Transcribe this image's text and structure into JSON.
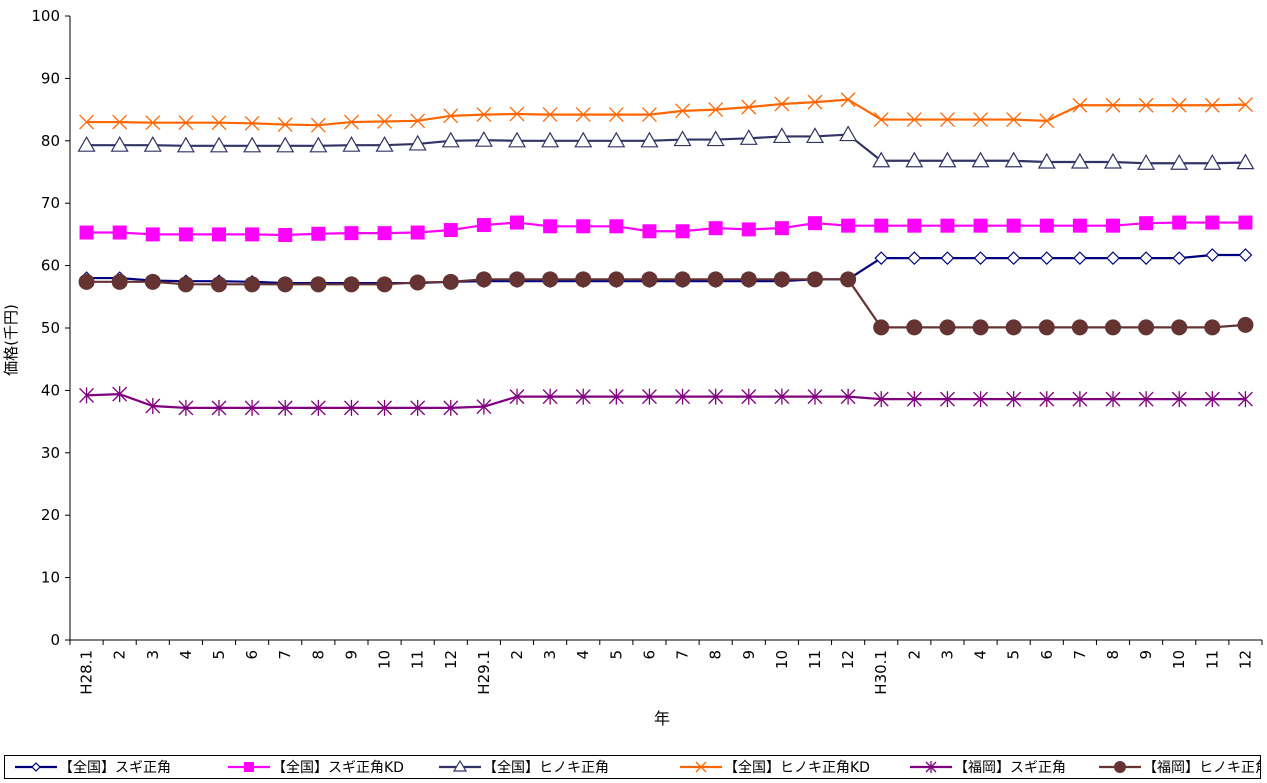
{
  "chart_data": {
    "type": "line",
    "title": "",
    "xlabel": "年",
    "ylabel": "価格(千円)",
    "ylim": [
      0,
      100
    ],
    "ytick_step": 10,
    "grid": false,
    "legend_position": "bottom",
    "categories": [
      "H28.1",
      "2",
      "3",
      "4",
      "5",
      "6",
      "7",
      "8",
      "9",
      "10",
      "11",
      "12",
      "H29.1",
      "2",
      "3",
      "4",
      "5",
      "6",
      "7",
      "8",
      "9",
      "10",
      "11",
      "12",
      "H30.1",
      "2",
      "3",
      "4",
      "5",
      "6",
      "7",
      "8",
      "9",
      "10",
      "11",
      "12"
    ],
    "series": [
      {
        "name": "【全国】スギ正角",
        "color": "#000080",
        "marker": "diamond-open",
        "values": [
          58,
          58,
          57.6,
          57.5,
          57.5,
          57.4,
          57.2,
          57.2,
          57.2,
          57.2,
          57.2,
          57.4,
          57.5,
          57.5,
          57.5,
          57.5,
          57.5,
          57.5,
          57.5,
          57.5,
          57.5,
          57.5,
          57.8,
          57.8,
          61.2,
          61.2,
          61.2,
          61.2,
          61.2,
          61.2,
          61.2,
          61.2,
          61.2,
          61.2,
          61.7,
          61.7
        ]
      },
      {
        "name": "【全国】スギ正角KD",
        "color": "#ff00ff",
        "marker": "square",
        "values": [
          65.3,
          65.3,
          65,
          65,
          65,
          65,
          64.9,
          65.1,
          65.2,
          65.2,
          65.3,
          65.7,
          66.5,
          66.9,
          66.3,
          66.3,
          66.3,
          65.5,
          65.5,
          66,
          65.8,
          66,
          66.8,
          66.4,
          66.4,
          66.4,
          66.4,
          66.4,
          66.4,
          66.4,
          66.4,
          66.4,
          66.8,
          66.9,
          66.9,
          66.9
        ]
      },
      {
        "name": "【全国】ヒノキ正角",
        "color": "#333366",
        "marker": "triangle-open",
        "values": [
          79.3,
          79.3,
          79.3,
          79.2,
          79.2,
          79.2,
          79.2,
          79.2,
          79.3,
          79.3,
          79.5,
          80,
          80.1,
          80,
          80,
          80,
          80,
          80,
          80.2,
          80.2,
          80.4,
          80.7,
          80.7,
          81,
          76.8,
          76.8,
          76.8,
          76.8,
          76.8,
          76.6,
          76.6,
          76.6,
          76.4,
          76.4,
          76.4,
          76.5
        ]
      },
      {
        "name": "【全国】ヒノキ正角KD",
        "color": "#ff6600",
        "marker": "x",
        "values": [
          83,
          83,
          82.9,
          82.9,
          82.9,
          82.8,
          82.6,
          82.5,
          83,
          83.1,
          83.2,
          84,
          84.2,
          84.3,
          84.2,
          84.2,
          84.2,
          84.2,
          84.8,
          85,
          85.4,
          85.9,
          86.2,
          86.6,
          83.4,
          83.4,
          83.4,
          83.4,
          83.4,
          83.2,
          85.7,
          85.7,
          85.7,
          85.7,
          85.7,
          85.8
        ]
      },
      {
        "name": "【福岡】スギ正角",
        "color": "#800080",
        "marker": "asterisk",
        "values": [
          39.2,
          39.4,
          37.5,
          37.2,
          37.2,
          37.2,
          37.2,
          37.2,
          37.2,
          37.2,
          37.2,
          37.2,
          37.4,
          39,
          39,
          39,
          39,
          39,
          39,
          39,
          39,
          39,
          39,
          39,
          38.6,
          38.6,
          38.6,
          38.6,
          38.6,
          38.6,
          38.6,
          38.6,
          38.6,
          38.6,
          38.6,
          38.6
        ]
      },
      {
        "name": "【福岡】ヒノキ正角",
        "color": "#663333",
        "marker": "circle",
        "values": [
          57.4,
          57.4,
          57.4,
          57,
          57,
          57,
          57,
          57,
          57,
          57,
          57.3,
          57.4,
          57.8,
          57.8,
          57.8,
          57.8,
          57.8,
          57.8,
          57.8,
          57.8,
          57.8,
          57.8,
          57.8,
          57.8,
          50.1,
          50.1,
          50.1,
          50.1,
          50.1,
          50.1,
          50.1,
          50.1,
          50.1,
          50.1,
          50.1,
          50.5
        ]
      }
    ]
  }
}
